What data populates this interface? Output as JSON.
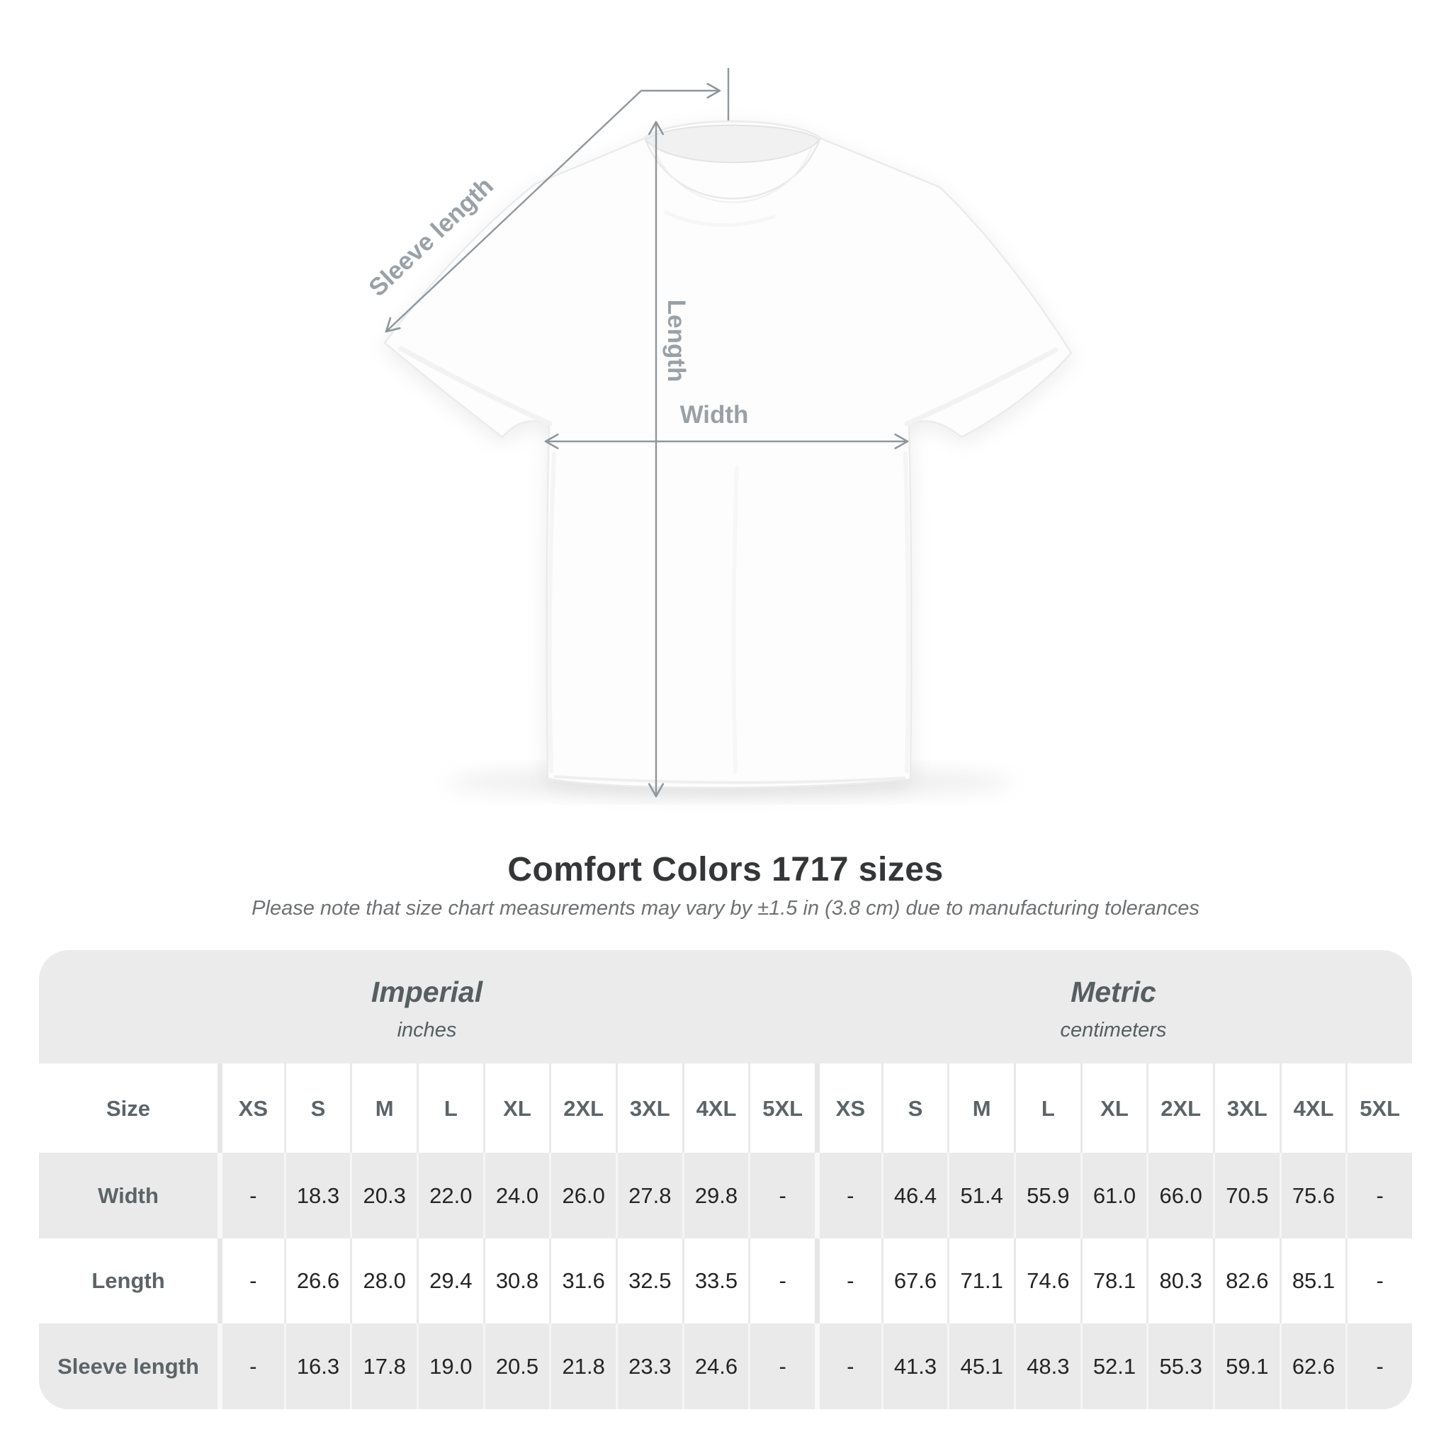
{
  "title": "Comfort Colors 1717 sizes",
  "subtitle": "Please note that size chart measurements may vary by ±1.5 in (3.8 cm) due to manufacturing tolerances",
  "diagram": {
    "labels": {
      "sleeve_length": "Sleeve length",
      "length": "Length",
      "width": "Width"
    },
    "colors": {
      "measure_line": "#8f979c",
      "measure_label": "#9aa1a6"
    }
  },
  "table": {
    "size_header": "Size",
    "unit_groups": [
      {
        "name": "Imperial",
        "unit": "inches"
      },
      {
        "name": "Metric",
        "unit": "centimeters"
      }
    ],
    "columns": [
      "XS",
      "S",
      "M",
      "L",
      "XL",
      "2XL",
      "3XL",
      "4XL",
      "5XL",
      "XS",
      "S",
      "M",
      "L",
      "XL",
      "2XL",
      "3XL",
      "4XL",
      "5XL"
    ],
    "rows": [
      {
        "label": "Width",
        "values": [
          "-",
          "18.3",
          "20.3",
          "22.0",
          "24.0",
          "26.0",
          "27.8",
          "29.8",
          "-",
          "-",
          "46.4",
          "51.4",
          "55.9",
          "61.0",
          "66.0",
          "70.5",
          "75.6",
          "-"
        ]
      },
      {
        "label": "Length",
        "values": [
          "-",
          "26.6",
          "28.0",
          "29.4",
          "30.8",
          "31.6",
          "32.5",
          "33.5",
          "-",
          "-",
          "67.6",
          "71.1",
          "74.6",
          "78.1",
          "80.3",
          "82.6",
          "85.1",
          "-"
        ]
      },
      {
        "label": "Sleeve length",
        "values": [
          "-",
          "16.3",
          "17.8",
          "19.0",
          "20.5",
          "21.8",
          "23.3",
          "24.6",
          "-",
          "-",
          "41.3",
          "45.1",
          "48.3",
          "52.1",
          "55.3",
          "59.1",
          "62.6",
          "-"
        ]
      }
    ],
    "colors": {
      "container_bg": "#ebebeb",
      "row_stripe": "#eaeaea",
      "header_text": "#5c6467",
      "value_text": "#242424"
    }
  }
}
